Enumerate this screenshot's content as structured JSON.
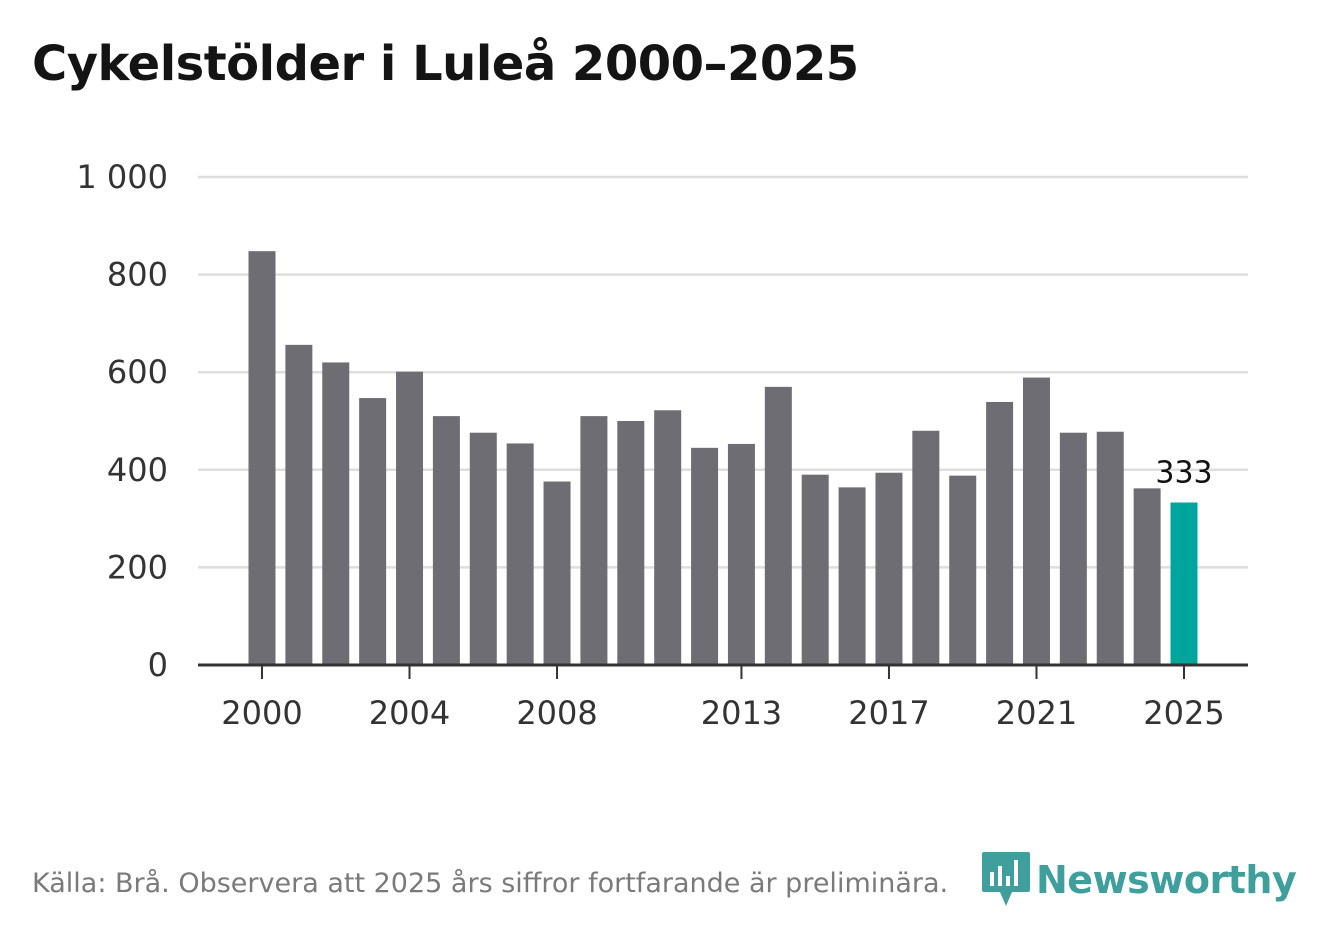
{
  "title": "Cykelstölder i Luleå 2000–2025",
  "footer": "Källa: Brå. Observera att 2025 års siffror fortfarande är preliminära.",
  "logo_text": "Newsworthy",
  "colors": {
    "bar": "#6e6d73",
    "highlight": "#00a59b",
    "grid": "#dedede",
    "axis": "#333333",
    "logo": "#3f9f9c"
  },
  "chart_data": {
    "type": "bar",
    "title": "Cykelstölder i Luleå 2000–2025",
    "xlabel": "",
    "ylabel": "",
    "categories": [
      "2000",
      "2001",
      "2002",
      "2003",
      "2004",
      "2005",
      "2006",
      "2007",
      "2008",
      "2009",
      "2010",
      "2011",
      "2012",
      "2013",
      "2014",
      "2015",
      "2016",
      "2017",
      "2018",
      "2019",
      "2020",
      "2021",
      "2022",
      "2023",
      "2024",
      "2025"
    ],
    "values": [
      848,
      656,
      620,
      547,
      601,
      510,
      476,
      454,
      376,
      510,
      500,
      522,
      445,
      453,
      570,
      390,
      364,
      394,
      480,
      388,
      539,
      589,
      476,
      478,
      362,
      333
    ],
    "ylim": [
      0,
      1000
    ],
    "yticks": [
      0,
      200,
      400,
      600,
      800,
      1000
    ],
    "ytick_labels": [
      "0",
      "200",
      "400",
      "600",
      "800",
      "1 000"
    ],
    "xticks_shown": [
      "2000",
      "2004",
      "2008",
      "2013",
      "2017",
      "2021",
      "2025"
    ],
    "highlight": {
      "category": "2025",
      "label": "333"
    },
    "grid": true
  }
}
